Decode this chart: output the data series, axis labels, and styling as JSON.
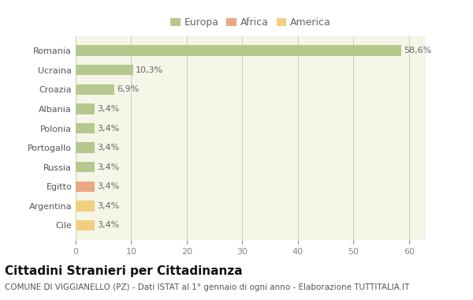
{
  "categories": [
    "Romania",
    "Ucraina",
    "Croazia",
    "Albania",
    "Polonia",
    "Portogallo",
    "Russia",
    "Egitto",
    "Argentina",
    "Cile"
  ],
  "values": [
    58.6,
    10.3,
    6.9,
    3.4,
    3.4,
    3.4,
    3.4,
    3.4,
    3.4,
    3.4
  ],
  "labels": [
    "58,6%",
    "10,3%",
    "6,9%",
    "3,4%",
    "3,4%",
    "3,4%",
    "3,4%",
    "3,4%",
    "3,4%",
    "3,4%"
  ],
  "colors": [
    "#b5c98e",
    "#b5c98e",
    "#b5c98e",
    "#b5c98e",
    "#b5c98e",
    "#b5c98e",
    "#b5c98e",
    "#e8a882",
    "#f0d080",
    "#f0d080"
  ],
  "legend_labels": [
    "Europa",
    "Africa",
    "America"
  ],
  "legend_colors": [
    "#b5c98e",
    "#e8a882",
    "#f0d080"
  ],
  "title": "Cittadini Stranieri per Cittadinanza",
  "subtitle": "COMUNE DI VIGGIANELLO (PZ) - Dati ISTAT al 1° gennaio di ogni anno - Elaborazione TUTTITALIA.IT",
  "xlim": [
    0,
    63
  ],
  "xticks": [
    0,
    10,
    20,
    30,
    40,
    50,
    60
  ],
  "background_color": "#ffffff",
  "plot_bg_color": "#f5f5e8",
  "grid_color": "#ccccbb",
  "bar_height": 0.55,
  "title_fontsize": 11,
  "subtitle_fontsize": 7.5,
  "label_fontsize": 8,
  "tick_fontsize": 8,
  "legend_fontsize": 9
}
